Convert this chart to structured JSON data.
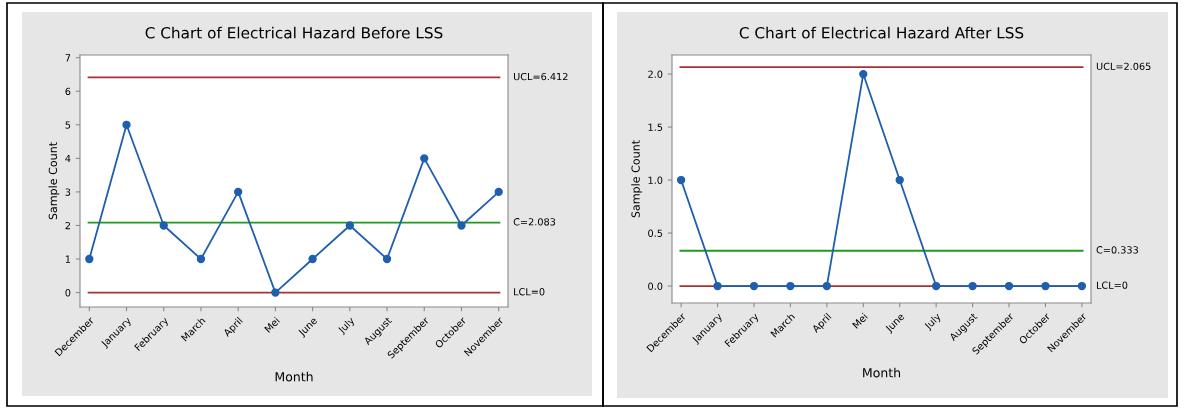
{
  "chart_data": [
    {
      "type": "line",
      "title": "C Chart of Electrical Hazard Before LSS",
      "xlabel": "Month",
      "ylabel": "Sample Count",
      "categories": [
        "December",
        "January",
        "February",
        "March",
        "April",
        "Mei",
        "June",
        "July",
        "August",
        "September",
        "October",
        "November"
      ],
      "series": [
        {
          "color": "#1f5fae",
          "values": [
            1,
            5,
            2,
            1,
            3,
            0,
            1,
            2,
            1,
            4,
            2,
            3
          ]
        }
      ],
      "ylim": [
        -0.43,
        7.08
      ],
      "yticks": [
        0,
        1,
        2,
        3,
        4,
        5,
        6,
        7
      ],
      "marker": "circle",
      "line_style": "solid",
      "grid": false,
      "legend": false,
      "ref_lines": [
        {
          "axis": "y",
          "value": 6.412,
          "label": "UCL=6.412",
          "color": "#a83232"
        },
        {
          "axis": "y",
          "value": 2.083,
          "label": "C̄=2.083",
          "color": "#1e9a1e"
        },
        {
          "axis": "y",
          "value": 0,
          "label": "LCL=0",
          "color": "#a83232"
        }
      ]
    },
    {
      "type": "line",
      "title": "C Chart of Electrical Hazard After LSS",
      "xlabel": "Month",
      "ylabel": "Sample Count",
      "categories": [
        "December",
        "January",
        "February",
        "March",
        "April",
        "Mei",
        "June",
        "July",
        "August",
        "September",
        "October",
        "November"
      ],
      "series": [
        {
          "color": "#1f5fae",
          "values": [
            1,
            0,
            0,
            0,
            0,
            2,
            1,
            0,
            0,
            0,
            0,
            0
          ]
        }
      ],
      "ylim": [
        -0.16,
        2.18
      ],
      "yticks": [
        {
          "value": 0,
          "label": "0.0"
        },
        {
          "value": 0.5,
          "label": "0.5"
        },
        {
          "value": 1,
          "label": "1.0"
        },
        {
          "value": 1.5,
          "label": "1.5"
        },
        {
          "value": 2,
          "label": "2.0"
        }
      ],
      "marker": "circle",
      "line_style": "solid",
      "grid": false,
      "legend": false,
      "ref_lines": [
        {
          "axis": "y",
          "value": 2.065,
          "label": "UCL=2.065",
          "color": "#a83232"
        },
        {
          "axis": "y",
          "value": 0.333,
          "label": "C̄=0.333",
          "color": "#1e9a1e"
        },
        {
          "axis": "y",
          "value": 0,
          "label": "LCL=0",
          "color": "#a83232"
        }
      ]
    }
  ]
}
